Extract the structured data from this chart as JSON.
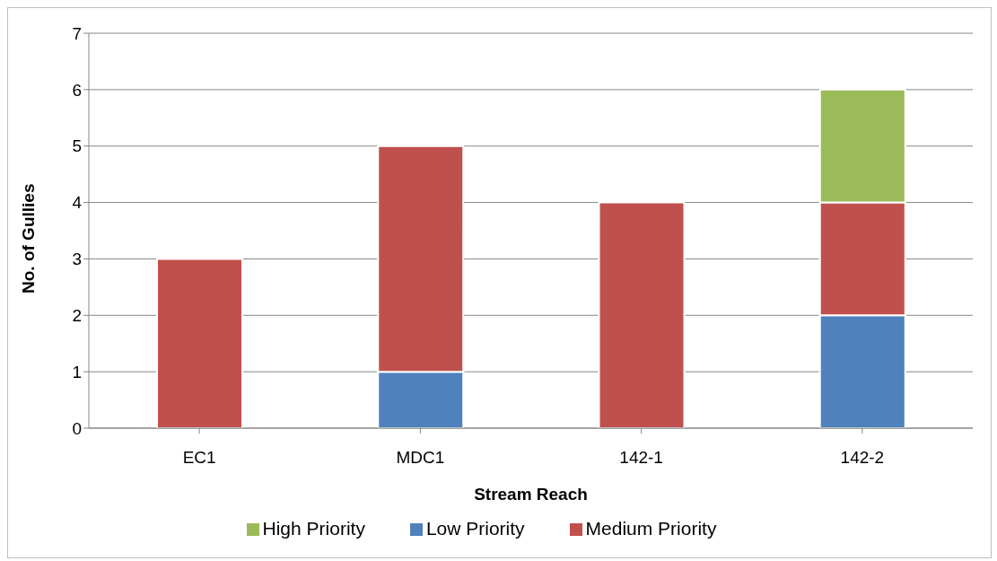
{
  "chart_data": {
    "type": "bar",
    "stacked": true,
    "xlabel": "Stream Reach",
    "ylabel": "No. of Gullies",
    "categories": [
      "EC1",
      "MDC1",
      "142-1",
      "142-2"
    ],
    "series": [
      {
        "name": "Low Priority",
        "color": "#4f81bd",
        "values": [
          0,
          1,
          0,
          2
        ]
      },
      {
        "name": "Medium Priority",
        "color": "#c0504d",
        "values": [
          3,
          4,
          4,
          2
        ]
      },
      {
        "name": "High Priority",
        "color": "#9bbb59",
        "values": [
          0,
          0,
          0,
          2
        ]
      }
    ],
    "ylim": [
      0,
      7
    ],
    "yticks": [
      0,
      1,
      2,
      3,
      4,
      5,
      6,
      7
    ],
    "grid": "y",
    "legend": "bottom"
  }
}
